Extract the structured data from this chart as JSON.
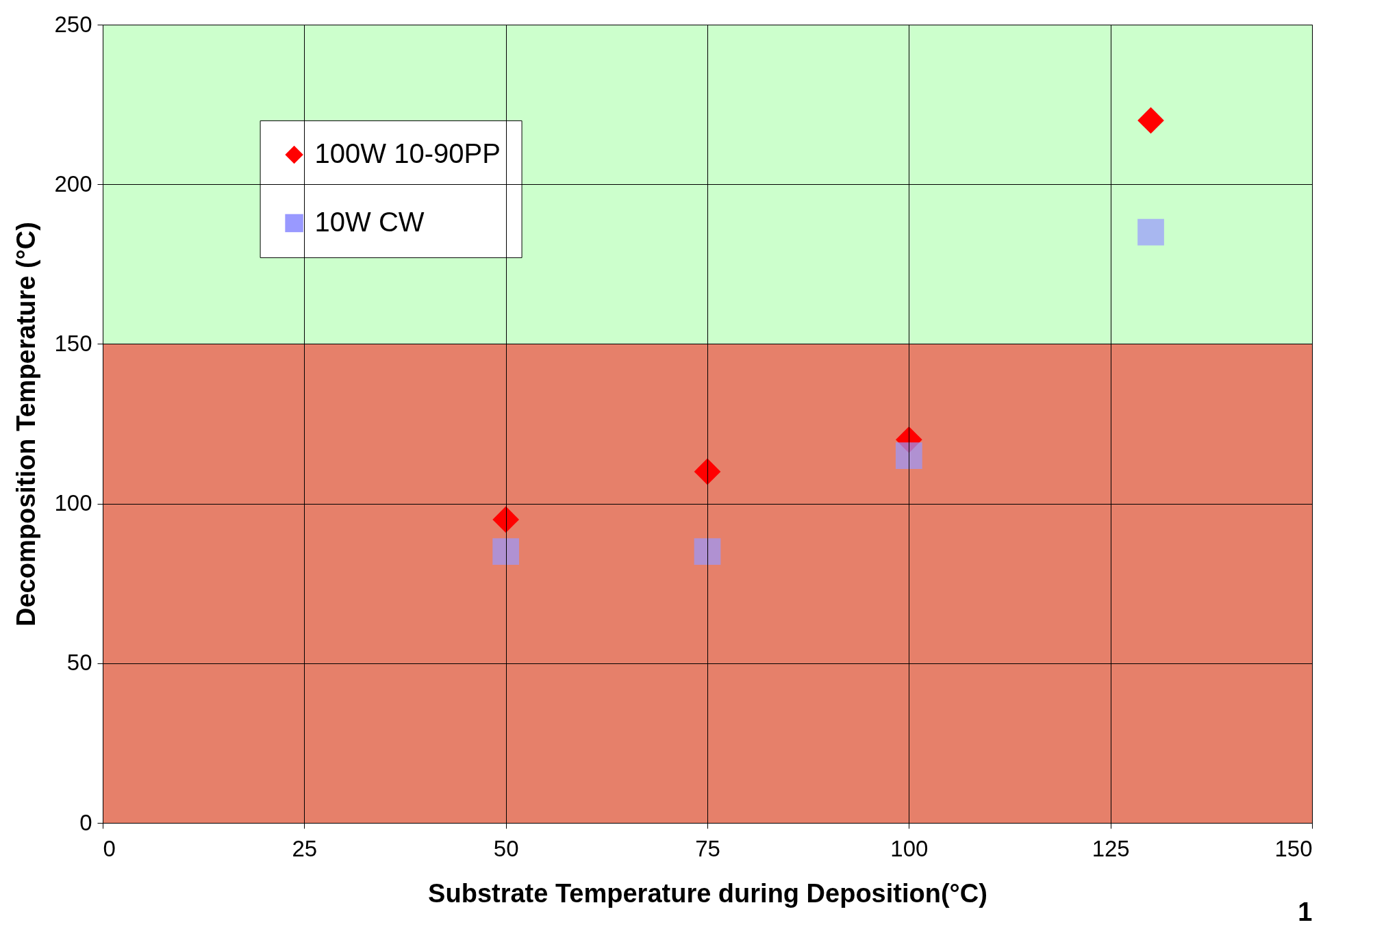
{
  "chart_data": {
    "type": "scatter",
    "xlabel": "Substrate Temperature during Deposition(°C)",
    "ylabel": "Decomposition Temperature (°C)",
    "xlim": [
      0,
      150
    ],
    "xticks": [
      0,
      25,
      50,
      75,
      100,
      125,
      150
    ],
    "ylim": [
      0,
      250
    ],
    "yticks": [
      0,
      50,
      100,
      150,
      200,
      250
    ],
    "grid": true,
    "legend": "top left",
    "series": [
      {
        "name": "100W 10-90PP",
        "color": "#ff0000",
        "marker": "diamond",
        "x": [
          50,
          75,
          100,
          130
        ],
        "values": [
          95,
          110,
          120,
          220
        ]
      },
      {
        "name": "10W CW",
        "color": "#9999ff",
        "marker": "square",
        "x": [
          50,
          75,
          100,
          130
        ],
        "values": [
          85,
          85,
          115,
          185
        ]
      }
    ],
    "bands": [
      {
        "axis": "y",
        "from": 0,
        "to": 150,
        "color": "#e6806a"
      },
      {
        "axis": "y",
        "from": 150,
        "to": 250,
        "color": "#ccffcc"
      }
    ],
    "annotations": [
      "1"
    ]
  }
}
